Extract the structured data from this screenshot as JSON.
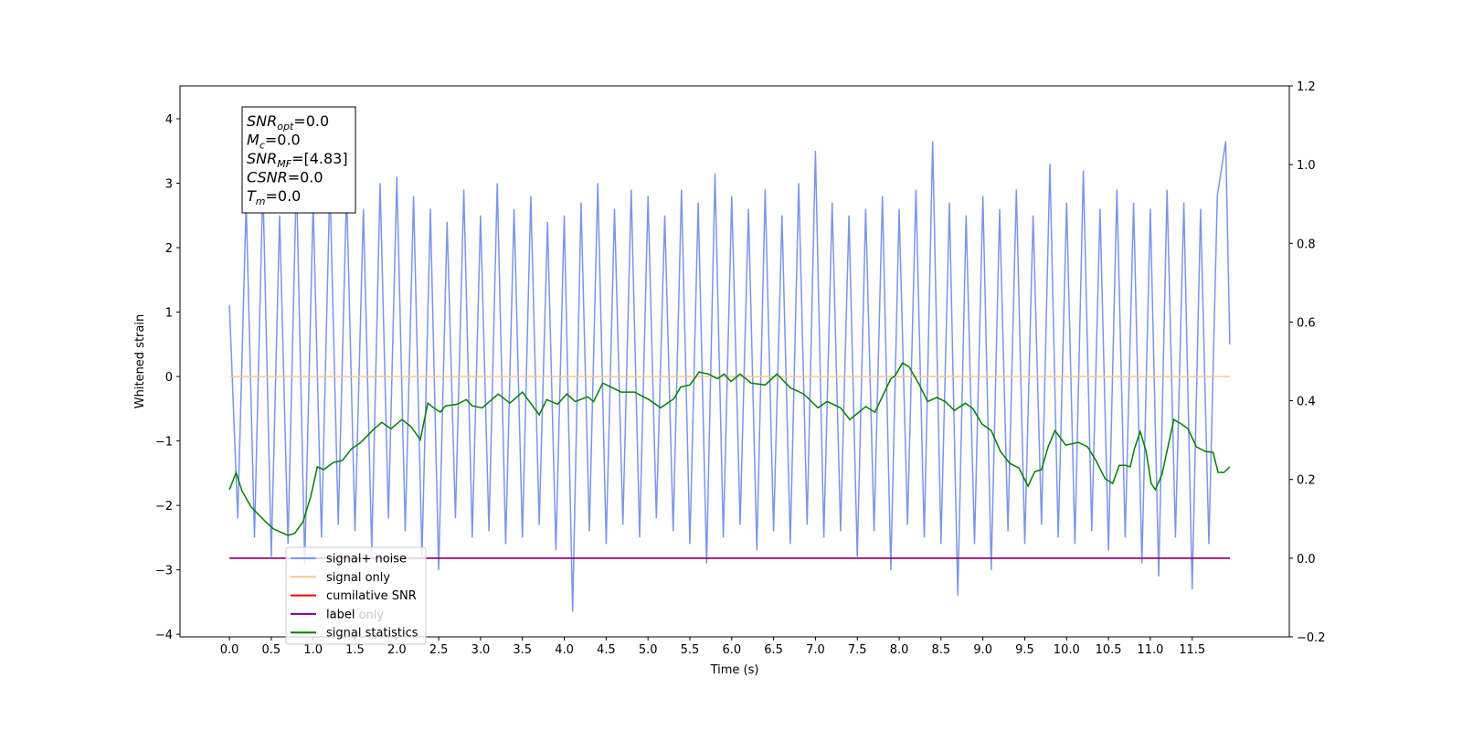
{
  "chart_data": {
    "type": "line",
    "xlabel": "Time (s)",
    "ylabel": "Whitened strain",
    "xlim": [
      -0.59,
      12.66
    ],
    "ylim": [
      -4.04,
      4.51
    ],
    "y2lim": [
      -0.2,
      1.2
    ],
    "xticks": [
      {
        "value": 0,
        "label": "0.0"
      },
      0.5,
      {
        "value": 1,
        "label": "1.0"
      },
      1.5,
      {
        "value": 2,
        "label": "2.0"
      },
      2.5,
      {
        "value": 3,
        "label": "3.0"
      },
      3.5,
      {
        "value": 4,
        "label": "4.0"
      },
      4.5,
      {
        "value": 5,
        "label": "5.0"
      },
      5.5,
      {
        "value": 6,
        "label": "6.0"
      },
      6.5,
      {
        "value": 7,
        "label": "7.0"
      },
      7.5,
      {
        "value": 8,
        "label": "8.0"
      },
      8.5,
      {
        "value": 9,
        "label": "9.0"
      },
      9.5,
      {
        "value": 10,
        "label": "10.0"
      },
      10.5,
      {
        "value": 11,
        "label": "11.0"
      },
      11.5
    ],
    "yticks": [
      {
        "value": -4,
        "label": "−4"
      },
      {
        "value": -3,
        "label": "−3"
      },
      {
        "value": -2,
        "label": "−2"
      },
      {
        "value": -1,
        "label": "−1"
      },
      0,
      1,
      2,
      3,
      4
    ],
    "y2ticks": [
      {
        "value": -0.2,
        "label": "−0.2"
      },
      {
        "value": 0,
        "label": "0.0"
      },
      0.2,
      0.4,
      0.6,
      0.8,
      {
        "value": 1,
        "label": "1.0"
      },
      1.2
    ],
    "series": [
      {
        "name": "signal+ noise",
        "color": "#7b96e8",
        "axis": "y",
        "x": [
          0,
          0.1,
          0.2,
          0.3,
          0.4,
          0.5,
          0.6,
          0.7,
          0.8,
          0.9,
          1,
          1.1,
          1.2,
          1.3,
          1.4,
          1.5,
          1.6,
          1.7,
          1.8,
          1.9,
          2,
          2.1,
          2.2,
          2.3,
          2.4,
          2.5,
          2.6,
          2.7,
          2.8,
          2.9,
          3,
          3.1,
          3.2,
          3.3,
          3.4,
          3.5,
          3.6,
          3.7,
          3.8,
          3.9,
          4,
          4.1,
          4.2,
          4.3,
          4.4,
          4.5,
          4.6,
          4.7,
          4.8,
          4.9,
          5,
          5.1,
          5.2,
          5.3,
          5.4,
          5.5,
          5.6,
          5.7,
          5.8,
          5.9,
          6,
          6.1,
          6.2,
          6.3,
          6.4,
          6.5,
          6.6,
          6.7,
          6.8,
          6.9,
          7,
          7.1,
          7.2,
          7.3,
          7.4,
          7.5,
          7.6,
          7.7,
          7.8,
          7.9,
          8,
          8.1,
          8.2,
          8.3,
          8.4,
          8.5,
          8.6,
          8.7,
          8.8,
          8.9,
          9,
          9.1,
          9.2,
          9.3,
          9.4,
          9.5,
          9.6,
          9.7,
          9.8,
          9.9,
          10,
          10.1,
          10.2,
          10.3,
          10.4,
          10.5,
          10.6,
          10.7,
          10.8,
          10.9,
          11,
          11.1,
          11.2,
          11.3,
          11.4,
          11.5,
          11.6,
          11.7,
          11.8,
          11.9,
          11.95
        ],
        "values": [
          1.1,
          -2.2,
          2.7,
          -2.5,
          3.0,
          -2.8,
          2.5,
          -2.6,
          3.1,
          -2.9,
          2.7,
          -2.5,
          3.0,
          -2.3,
          2.9,
          -2.4,
          2.6,
          -2.7,
          3.0,
          -2.2,
          3.1,
          -2.4,
          2.8,
          -2.8,
          2.6,
          -3.0,
          2.4,
          -2.2,
          2.9,
          -2.5,
          2.5,
          -2.4,
          3.0,
          -2.6,
          2.6,
          -2.5,
          2.8,
          -2.3,
          2.4,
          -2.7,
          2.5,
          -3.65,
          2.7,
          -2.4,
          3.0,
          -2.6,
          2.6,
          -2.3,
          2.9,
          -2.5,
          2.8,
          -2.2,
          2.5,
          -2.4,
          2.9,
          -2.6,
          2.7,
          -2.9,
          3.15,
          -2.5,
          2.8,
          -2.3,
          2.6,
          -2.7,
          2.9,
          -2.4,
          2.5,
          -2.6,
          3.0,
          -2.3,
          3.5,
          -2.5,
          2.7,
          -2.4,
          2.5,
          -2.8,
          2.6,
          -2.4,
          2.8,
          -3.0,
          2.6,
          -2.3,
          2.9,
          -2.5,
          3.65,
          -2.6,
          2.7,
          -3.4,
          2.5,
          -2.6,
          2.8,
          -3.0,
          2.6,
          -2.4,
          2.9,
          -2.6,
          2.5,
          -2.3,
          3.3,
          -2.5,
          2.7,
          -2.6,
          3.2,
          -2.4,
          2.6,
          -2.7,
          2.9,
          -2.5,
          2.7,
          -2.9,
          2.6,
          -3.1,
          2.9,
          -2.5,
          2.7,
          -3.3,
          2.6,
          -2.6,
          2.8,
          3.65,
          0.5
        ]
      },
      {
        "name": "signal only",
        "color": "#f8c98a",
        "axis": "y",
        "x": [
          0,
          11.95
        ],
        "values": [
          0,
          0
        ]
      },
      {
        "name": "cumilative SNR",
        "color": "#ff0000",
        "axis": "y2",
        "x": [
          0,
          11.95
        ],
        "values": [
          0,
          0
        ]
      },
      {
        "name": "label",
        "color": "#800080",
        "axis": "y2",
        "x": [
          0,
          11.95
        ],
        "values": [
          0,
          0
        ]
      },
      {
        "name": "signal statistics",
        "color": "#008000",
        "axis": "y2",
        "x": [
          0,
          0.08,
          0.15,
          0.26,
          0.43,
          0.53,
          0.7,
          0.78,
          0.88,
          0.97,
          1.05,
          1.13,
          1.24,
          1.35,
          1.46,
          1.57,
          1.73,
          1.82,
          1.93,
          2.06,
          2.17,
          2.28,
          2.37,
          2.44,
          2.52,
          2.58,
          2.72,
          2.83,
          2.9,
          3.02,
          3.21,
          3.35,
          3.5,
          3.7,
          3.79,
          3.92,
          4.03,
          4.13,
          4.28,
          4.35,
          4.46,
          4.68,
          4.84,
          5.01,
          5.15,
          5.31,
          5.39,
          5.5,
          5.61,
          5.72,
          5.83,
          5.91,
          5.99,
          6.1,
          6.23,
          6.4,
          6.54,
          6.7,
          6.86,
          7.03,
          7.14,
          7.3,
          7.41,
          7.6,
          7.71,
          7.9,
          7.95,
          8.04,
          8.12,
          8.23,
          8.34,
          8.45,
          8.55,
          8.66,
          8.79,
          8.88,
          8.99,
          9.1,
          9.21,
          9.32,
          9.43,
          9.54,
          9.62,
          9.7,
          9.78,
          9.86,
          9.99,
          10.14,
          10.25,
          10.35,
          10.46,
          10.55,
          10.63,
          10.7,
          10.76,
          10.81,
          10.88,
          10.95,
          11.01,
          11.06,
          11.14,
          11.28,
          11.37,
          11.45,
          11.55,
          11.66,
          11.75,
          11.81,
          11.88,
          11.95
        ],
        "values": [
          0.174,
          0.218,
          0.171,
          0.13,
          0.093,
          0.074,
          0.058,
          0.063,
          0.093,
          0.155,
          0.232,
          0.225,
          0.243,
          0.248,
          0.278,
          0.294,
          0.329,
          0.345,
          0.329,
          0.352,
          0.334,
          0.301,
          0.394,
          0.382,
          0.371,
          0.387,
          0.391,
          0.403,
          0.387,
          0.382,
          0.417,
          0.394,
          0.422,
          0.364,
          0.403,
          0.391,
          0.417,
          0.398,
          0.41,
          0.398,
          0.445,
          0.422,
          0.422,
          0.403,
          0.382,
          0.405,
          0.435,
          0.44,
          0.473,
          0.468,
          0.456,
          0.468,
          0.449,
          0.468,
          0.445,
          0.44,
          0.468,
          0.433,
          0.417,
          0.382,
          0.398,
          0.382,
          0.352,
          0.385,
          0.371,
          0.456,
          0.463,
          0.496,
          0.486,
          0.445,
          0.398,
          0.408,
          0.398,
          0.375,
          0.394,
          0.38,
          0.341,
          0.324,
          0.271,
          0.241,
          0.229,
          0.183,
          0.22,
          0.225,
          0.283,
          0.324,
          0.287,
          0.294,
          0.283,
          0.248,
          0.202,
          0.19,
          0.236,
          0.236,
          0.232,
          0.278,
          0.322,
          0.271,
          0.19,
          0.174,
          0.213,
          0.352,
          0.341,
          0.329,
          0.283,
          0.271,
          0.269,
          0.218,
          0.218,
          0.232
        ]
      }
    ],
    "legend_ghost_labels": [
      "label only"
    ],
    "annotation_lines": [
      {
        "main": "SNR",
        "sub": "opt",
        "rest": "=0.0"
      },
      {
        "main": "M",
        "sub": "c",
        "rest": "=0.0"
      },
      {
        "main": "SNR",
        "sub": "MF",
        "rest": "=[4.83]"
      },
      {
        "main": "CSNR",
        "rest": "=0.0"
      },
      {
        "main": "T",
        "sub": "m",
        "rest": "=0.0"
      }
    ]
  }
}
